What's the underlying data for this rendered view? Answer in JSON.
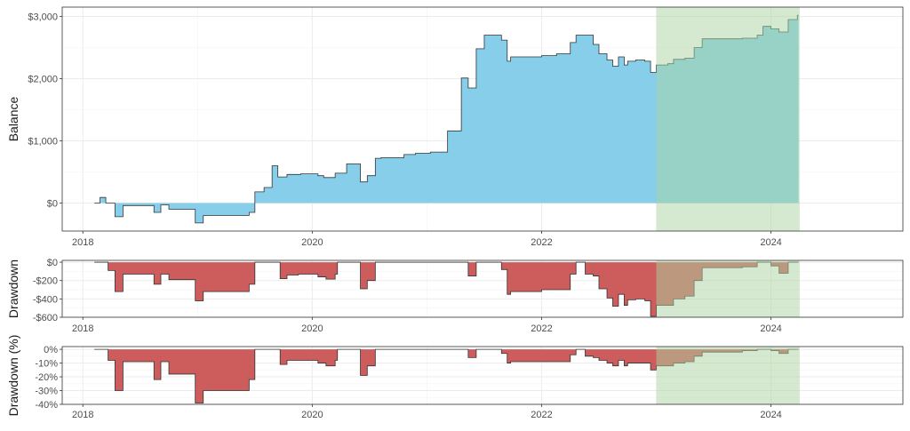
{
  "chart_data": [
    {
      "id": "balance",
      "type": "area",
      "ylabel": "Balance",
      "xlabel": "",
      "x_ticks": [
        {
          "v": 2018,
          "label": "2018"
        },
        {
          "v": 2020,
          "label": "2020"
        },
        {
          "v": 2022,
          "label": "2022"
        },
        {
          "v": 2024,
          "label": "2024"
        }
      ],
      "y_ticks": [
        {
          "v": 0,
          "label": "$0"
        },
        {
          "v": 1000,
          "label": "$1,000"
        },
        {
          "v": 2000,
          "label": "$2,000"
        },
        {
          "v": 3000,
          "label": "$3,000"
        }
      ],
      "xlim": [
        2017.82,
        2025.15
      ],
      "ylim": [
        -450,
        3150
      ],
      "grid": true,
      "fill_color": "#87ceeb",
      "highlight": {
        "x_start": 2023.0,
        "x_end": 2024.25,
        "color": "#a9d4a0"
      },
      "series": [
        {
          "step": [
            [
              2018.1,
              0
            ],
            [
              2018.15,
              90
            ],
            [
              2018.2,
              0
            ],
            [
              2018.28,
              -220
            ],
            [
              2018.35,
              -40
            ],
            [
              2018.62,
              -150
            ],
            [
              2018.68,
              -30
            ],
            [
              2018.75,
              -100
            ],
            [
              2018.98,
              -320
            ],
            [
              2019.05,
              -200
            ],
            [
              2019.45,
              -150
            ],
            [
              2019.5,
              180
            ],
            [
              2019.58,
              250
            ],
            [
              2019.65,
              600
            ],
            [
              2019.7,
              420
            ],
            [
              2019.78,
              460
            ],
            [
              2019.9,
              470
            ],
            [
              2020.05,
              440
            ],
            [
              2020.1,
              410
            ],
            [
              2020.2,
              480
            ],
            [
              2020.3,
              630
            ],
            [
              2020.42,
              340
            ],
            [
              2020.48,
              440
            ],
            [
              2020.55,
              720
            ],
            [
              2020.6,
              730
            ],
            [
              2020.8,
              780
            ],
            [
              2020.9,
              800
            ],
            [
              2021.03,
              820
            ],
            [
              2021.18,
              1160
            ],
            [
              2021.3,
              2010
            ],
            [
              2021.36,
              1850
            ],
            [
              2021.43,
              2480
            ],
            [
              2021.5,
              2700
            ],
            [
              2021.65,
              2620
            ],
            [
              2021.7,
              2280
            ],
            [
              2021.73,
              2350
            ],
            [
              2022.0,
              2370
            ],
            [
              2022.13,
              2400
            ],
            [
              2022.25,
              2580
            ],
            [
              2022.3,
              2700
            ],
            [
              2022.45,
              2550
            ],
            [
              2022.5,
              2400
            ],
            [
              2022.57,
              2300
            ],
            [
              2022.62,
              2200
            ],
            [
              2022.67,
              2350
            ],
            [
              2022.72,
              2220
            ],
            [
              2022.75,
              2280
            ],
            [
              2022.82,
              2300
            ],
            [
              2022.9,
              2280
            ],
            [
              2022.95,
              2100
            ],
            [
              2023.0,
              2220
            ],
            [
              2023.1,
              2240
            ],
            [
              2023.15,
              2310
            ],
            [
              2023.25,
              2330
            ],
            [
              2023.33,
              2500
            ],
            [
              2023.4,
              2640
            ],
            [
              2023.75,
              2650
            ],
            [
              2023.88,
              2700
            ],
            [
              2023.93,
              2840
            ],
            [
              2024.0,
              2800
            ],
            [
              2024.07,
              2750
            ],
            [
              2024.15,
              2950
            ],
            [
              2024.23,
              3020
            ]
          ],
          "end_x": 2024.24
        }
      ]
    },
    {
      "id": "drawdown",
      "type": "area",
      "ylabel": "Drawdown",
      "xlabel": "",
      "x_ticks": [
        {
          "v": 2018,
          "label": "2018"
        },
        {
          "v": 2020,
          "label": "2020"
        },
        {
          "v": 2022,
          "label": "2022"
        },
        {
          "v": 2024,
          "label": "2024"
        }
      ],
      "y_ticks": [
        {
          "v": 0,
          "label": "$0"
        },
        {
          "v": -200,
          "label": "-$200"
        },
        {
          "v": -400,
          "label": "-$400"
        },
        {
          "v": -600,
          "label": "-$600"
        }
      ],
      "xlim": [
        2017.82,
        2025.15
      ],
      "ylim": [
        -600,
        20
      ],
      "grid": true,
      "fill_color": "#cd5c5c",
      "highlight": {
        "x_start": 2023.0,
        "x_end": 2024.25,
        "color": "#a9d4a0"
      },
      "series": [
        {
          "step": [
            [
              2018.1,
              0
            ],
            [
              2018.15,
              0
            ],
            [
              2018.22,
              -90
            ],
            [
              2018.28,
              -320
            ],
            [
              2018.35,
              -130
            ],
            [
              2018.62,
              -240
            ],
            [
              2018.68,
              -130
            ],
            [
              2018.75,
              -190
            ],
            [
              2018.98,
              -420
            ],
            [
              2019.05,
              -320
            ],
            [
              2019.45,
              -240
            ],
            [
              2019.5,
              0
            ],
            [
              2019.72,
              -180
            ],
            [
              2019.78,
              -140
            ],
            [
              2019.88,
              -130
            ],
            [
              2020.05,
              -160
            ],
            [
              2020.12,
              -185
            ],
            [
              2020.2,
              -130
            ],
            [
              2020.22,
              0
            ],
            [
              2020.42,
              -290
            ],
            [
              2020.48,
              -200
            ],
            [
              2020.55,
              0
            ],
            [
              2021.36,
              -150
            ],
            [
              2021.43,
              0
            ],
            [
              2021.65,
              -80
            ],
            [
              2021.7,
              -350
            ],
            [
              2021.73,
              -320
            ],
            [
              2022.0,
              -300
            ],
            [
              2022.13,
              -300
            ],
            [
              2022.25,
              -130
            ],
            [
              2022.3,
              0
            ],
            [
              2022.38,
              -130
            ],
            [
              2022.45,
              -150
            ],
            [
              2022.5,
              -290
            ],
            [
              2022.57,
              -390
            ],
            [
              2022.62,
              -480
            ],
            [
              2022.67,
              -350
            ],
            [
              2022.72,
              -470
            ],
            [
              2022.75,
              -410
            ],
            [
              2022.82,
              -400
            ],
            [
              2022.9,
              -420
            ],
            [
              2022.95,
              -590
            ],
            [
              2023.0,
              -470
            ],
            [
              2023.15,
              -400
            ],
            [
              2023.25,
              -370
            ],
            [
              2023.33,
              -200
            ],
            [
              2023.4,
              -60
            ],
            [
              2023.75,
              -50
            ],
            [
              2023.88,
              0
            ],
            [
              2024.0,
              -40
            ],
            [
              2024.07,
              -120
            ],
            [
              2024.15,
              0
            ]
          ],
          "end_x": 2024.24
        }
      ]
    },
    {
      "id": "drawdown_pct",
      "type": "area",
      "ylabel": "Drawdown (%)",
      "xlabel": "",
      "x_ticks": [
        {
          "v": 2018,
          "label": "2018"
        },
        {
          "v": 2020,
          "label": "2020"
        },
        {
          "v": 2022,
          "label": "2022"
        },
        {
          "v": 2024,
          "label": "2024"
        }
      ],
      "y_ticks": [
        {
          "v": 0,
          "label": "0%"
        },
        {
          "v": -10,
          "label": "-10%"
        },
        {
          "v": -20,
          "label": "-20%"
        },
        {
          "v": -30,
          "label": "-30%"
        },
        {
          "v": -40,
          "label": "-40%"
        }
      ],
      "xlim": [
        2017.82,
        2025.15
      ],
      "ylim": [
        -40,
        2
      ],
      "grid": true,
      "fill_color": "#cd5c5c",
      "highlight": {
        "x_start": 2023.0,
        "x_end": 2024.25,
        "color": "#a9d4a0"
      },
      "series": [
        {
          "step": [
            [
              2018.1,
              0
            ],
            [
              2018.15,
              0
            ],
            [
              2018.22,
              -8
            ],
            [
              2018.28,
              -30
            ],
            [
              2018.35,
              -9
            ],
            [
              2018.62,
              -22
            ],
            [
              2018.68,
              -9
            ],
            [
              2018.75,
              -18
            ],
            [
              2018.98,
              -39
            ],
            [
              2019.05,
              -30
            ],
            [
              2019.45,
              -22
            ],
            [
              2019.5,
              0
            ],
            [
              2019.72,
              -11
            ],
            [
              2019.78,
              -8
            ],
            [
              2019.88,
              -8
            ],
            [
              2020.05,
              -10
            ],
            [
              2020.12,
              -12
            ],
            [
              2020.2,
              -8
            ],
            [
              2020.22,
              0
            ],
            [
              2020.42,
              -19
            ],
            [
              2020.48,
              -12
            ],
            [
              2020.55,
              0
            ],
            [
              2021.36,
              -6
            ],
            [
              2021.43,
              0
            ],
            [
              2021.65,
              -3
            ],
            [
              2021.7,
              -10
            ],
            [
              2021.73,
              -9
            ],
            [
              2022.0,
              -9
            ],
            [
              2022.13,
              -9
            ],
            [
              2022.25,
              -4
            ],
            [
              2022.3,
              0
            ],
            [
              2022.38,
              -5
            ],
            [
              2022.45,
              -6
            ],
            [
              2022.5,
              -8
            ],
            [
              2022.57,
              -10
            ],
            [
              2022.62,
              -12
            ],
            [
              2022.67,
              -8
            ],
            [
              2022.72,
              -12
            ],
            [
              2022.75,
              -10
            ],
            [
              2022.82,
              -10
            ],
            [
              2022.9,
              -10
            ],
            [
              2022.95,
              -15
            ],
            [
              2023.0,
              -12
            ],
            [
              2023.15,
              -10
            ],
            [
              2023.25,
              -9
            ],
            [
              2023.33,
              -5
            ],
            [
              2023.4,
              -2
            ],
            [
              2023.75,
              -1
            ],
            [
              2023.88,
              0
            ],
            [
              2024.0,
              -1
            ],
            [
              2024.07,
              -3
            ],
            [
              2024.15,
              0
            ]
          ],
          "end_x": 2024.24
        }
      ]
    }
  ]
}
